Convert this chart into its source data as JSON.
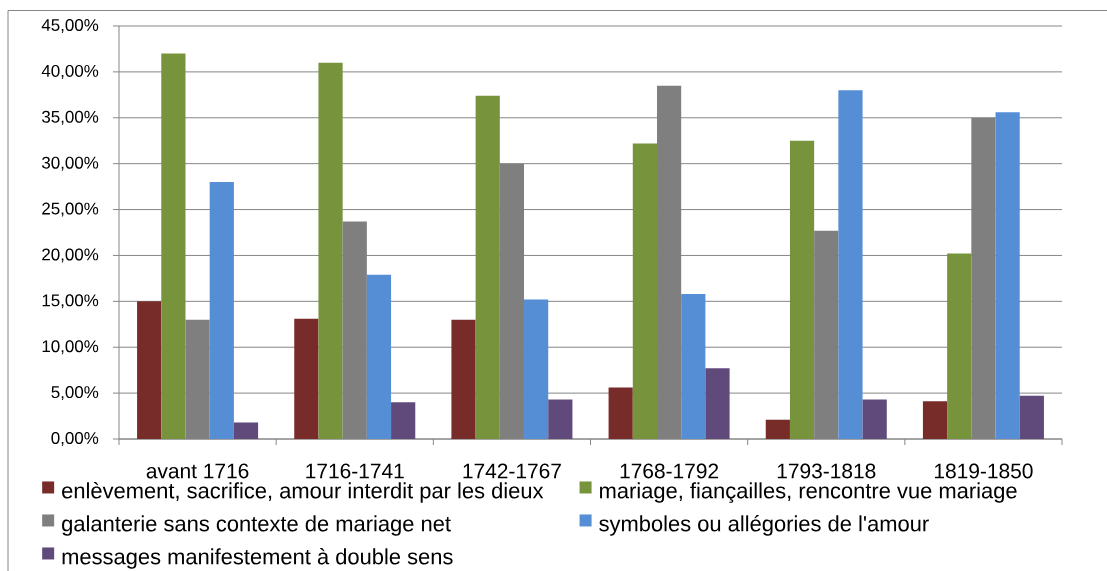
{
  "chart_data": {
    "type": "bar",
    "categories": [
      "avant 1716",
      "1716-1741",
      "1742-1767",
      "1768-1792",
      "1793-1818",
      "1819-1850"
    ],
    "series": [
      {
        "name": "enlèvement, sacrifice, amour interdit par les dieux",
        "color": "#772C2A",
        "values": [
          15.0,
          13.1,
          13.0,
          5.6,
          2.1,
          4.1
        ]
      },
      {
        "name": "mariage, fiançailles, rencontre vue mariage",
        "color": "#77933C",
        "values": [
          42.0,
          41.0,
          37.4,
          32.2,
          32.5,
          20.2
        ]
      },
      {
        "name": "galanterie sans contexte de mariage net",
        "color": "#7F7F7F",
        "values": [
          13.0,
          23.7,
          30.0,
          38.5,
          22.7,
          35.0
        ]
      },
      {
        "name": "symboles ou allégories de l'amour",
        "color": "#558ED5",
        "values": [
          28.0,
          17.9,
          15.2,
          15.8,
          38.0,
          35.6
        ]
      },
      {
        "name": "messages manifestement à double sens",
        "color": "#604A7B",
        "values": [
          1.8,
          4.0,
          4.3,
          7.7,
          4.3,
          4.7
        ]
      }
    ],
    "ylim": [
      0,
      45
    ],
    "yticks": [
      {
        "value": 0,
        "label": "0,00%"
      },
      {
        "value": 5,
        "label": "5,00%"
      },
      {
        "value": 10,
        "label": "10,00%"
      },
      {
        "value": 15,
        "label": "15,00%"
      },
      {
        "value": 20,
        "label": "20,00%"
      },
      {
        "value": 25,
        "label": "25,00%"
      },
      {
        "value": 30,
        "label": "30,00%"
      },
      {
        "value": 35,
        "label": "35,00%"
      },
      {
        "value": 40,
        "label": "40,00%"
      },
      {
        "value": 45,
        "label": "45,00%"
      }
    ],
    "grid": "y",
    "legend": "bottom"
  }
}
